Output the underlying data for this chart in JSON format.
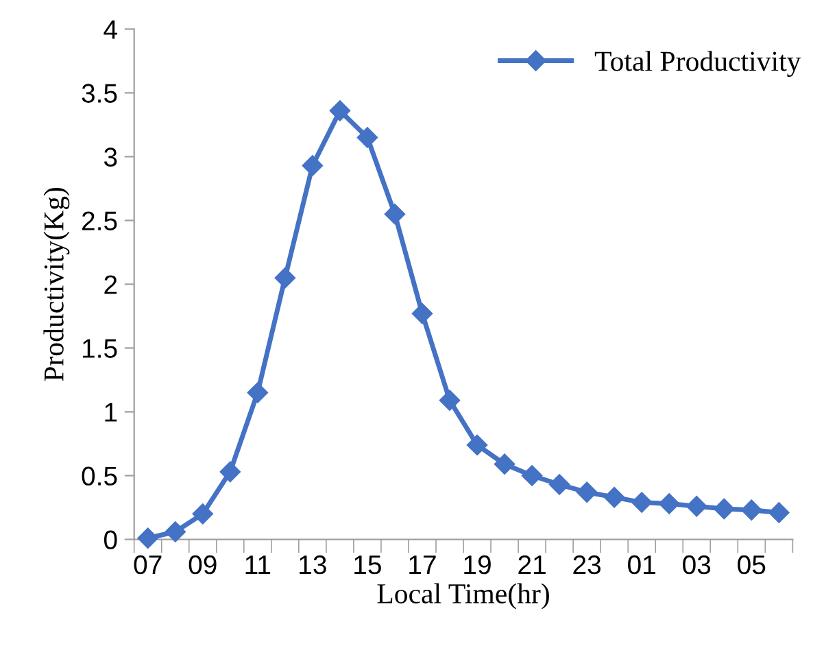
{
  "chart_data": {
    "type": "line",
    "xlabel": "Local Time(hr)",
    "ylabel": "Productivity(Kg)",
    "categories": [
      "07",
      null,
      "09",
      null,
      "11",
      null,
      "13",
      null,
      "15",
      null,
      "17",
      null,
      "19",
      null,
      "21",
      null,
      "23",
      null,
      "01",
      null,
      "03",
      null,
      "05",
      null
    ],
    "series": [
      {
        "name": "Total Productivity",
        "color": "#4472c4",
        "values": [
          0.01,
          0.06,
          0.2,
          0.53,
          1.15,
          2.05,
          2.93,
          3.36,
          3.15,
          2.55,
          1.77,
          1.09,
          0.74,
          0.59,
          0.5,
          0.43,
          0.37,
          0.33,
          0.29,
          0.28,
          0.26,
          0.24,
          0.23,
          0.21
        ]
      }
    ],
    "ylim": [
      0,
      4
    ],
    "yticks": [
      0,
      0.5,
      1,
      1.5,
      2,
      2.5,
      3,
      3.5,
      4
    ],
    "grid": false,
    "legend": "top right",
    "marker": "diamond",
    "line_style": "solid"
  }
}
